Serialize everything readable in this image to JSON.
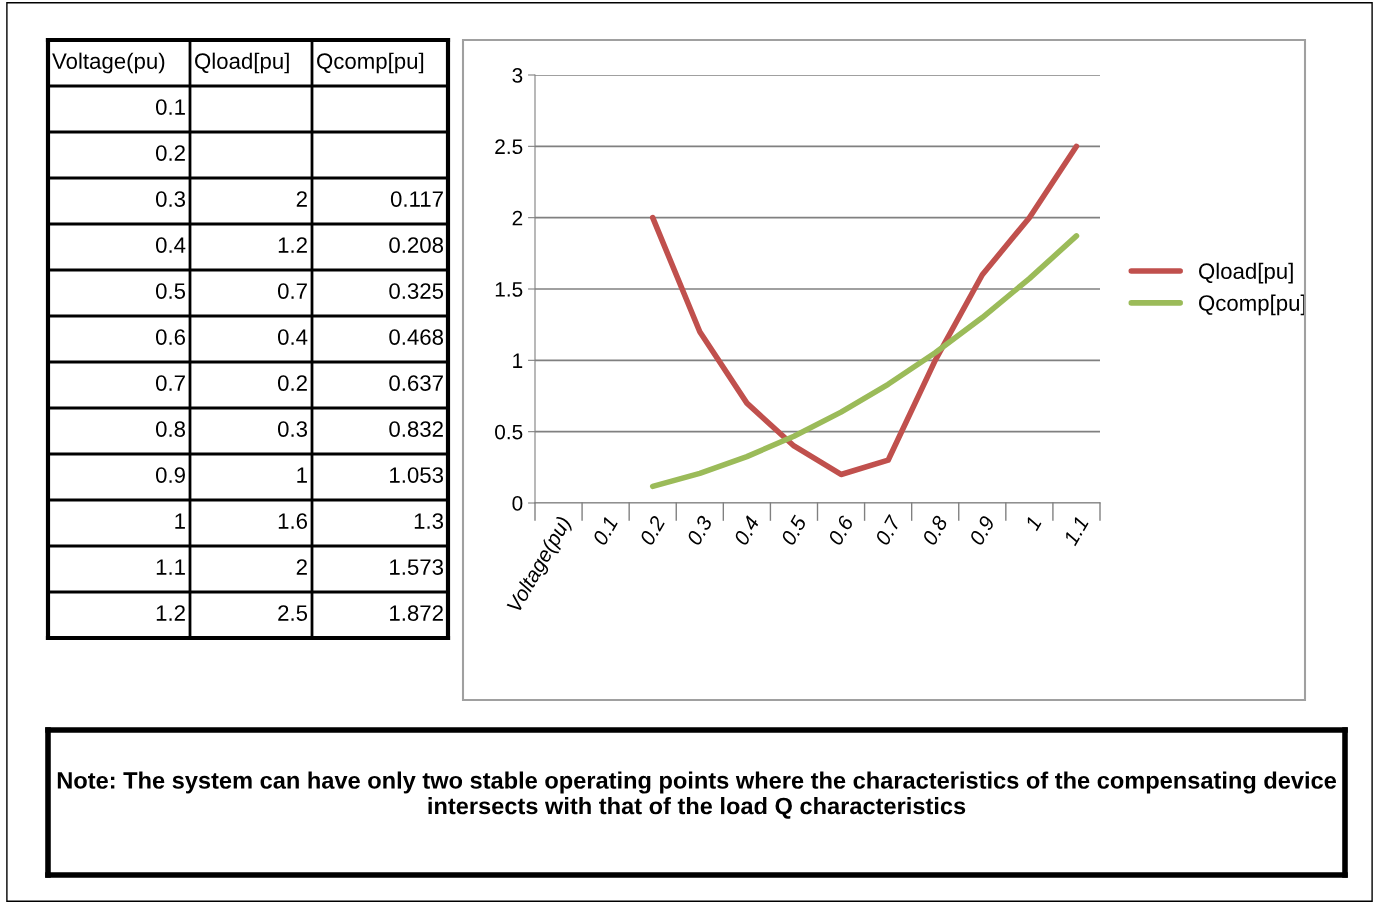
{
  "chart_data": {
    "type": "line",
    "categories": [
      "Voltage(pu)",
      "0.1",
      "0.2",
      "0.3",
      "0.4",
      "0.5",
      "0.6",
      "0.7",
      "0.8",
      "0.9",
      "1",
      "1.1"
    ],
    "series": [
      {
        "name": "Qload[pu]",
        "color": "#c0504d",
        "values": [
          null,
          null,
          2,
          1.2,
          0.7,
          0.4,
          0.2,
          0.3,
          1,
          1.6,
          2,
          2.5
        ]
      },
      {
        "name": "Qcomp[pu]",
        "color": "#9bbb59",
        "values": [
          null,
          null,
          0.117,
          0.208,
          0.325,
          0.468,
          0.637,
          0.832,
          1.053,
          1.3,
          1.573,
          1.872
        ]
      }
    ],
    "ylim": [
      0,
      3
    ],
    "yticks": [
      0,
      0.5,
      1,
      1.5,
      2,
      2.5,
      3
    ],
    "grid": "y",
    "legend": "right",
    "marker": "none",
    "line_style": "solid",
    "annotations": [
      "Note: The system can have only two stable operating points where the characteristics of the compensating device intersects with that of the load Q characteristics",
      "Voltage(pu)",
      "Qload[pu]",
      "Qcomp[pu]",
      "0.1",
      "0.2",
      "0.3",
      "2",
      "0.117",
      "0.4",
      "1.2",
      "0.208",
      "0.5",
      "0.7",
      "0.325",
      "0.6",
      "0.4",
      "0.468",
      "0.7",
      "0.2",
      "0.637",
      "0.8",
      "0.3",
      "0.832",
      "0.9",
      "1",
      "1.053",
      "1",
      "1.6",
      "1.3",
      "1.1",
      "2",
      "1.573",
      "1.2",
      "2.5",
      "1.872"
    ]
  }
}
